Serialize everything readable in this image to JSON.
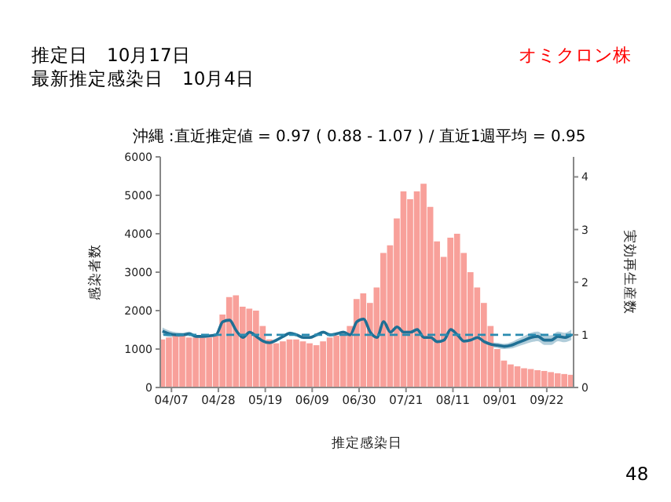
{
  "chart_data": {
    "type": "bar",
    "title": "沖縄 :直近推定値 = 0.97 ( 0.88 - 1.07 ) / 直近1週平均 = 0.95",
    "xlabel": "推定感染日",
    "ylabel": "感染者数",
    "y2label": "実効再生産数",
    "annotations": [
      "推定日　10月17日",
      "最新推定感染日　10月4日",
      "オミクロン株",
      "48"
    ],
    "x": [
      "--04-03",
      "--04-06",
      "--04-09",
      "--04-12",
      "--04-15",
      "--04-18",
      "--04-21",
      "--04-24",
      "--04-27",
      "--04-30",
      "--05-03",
      "--05-06",
      "--05-09",
      "--05-12",
      "--05-15",
      "--05-18",
      "--05-21",
      "--05-24",
      "--05-27",
      "--05-30",
      "--06-02",
      "--06-05",
      "--06-08",
      "--06-11",
      "--06-14",
      "--06-17",
      "--06-20",
      "--06-23",
      "--06-26",
      "--06-29",
      "--07-02",
      "--07-05",
      "--07-08",
      "--07-11",
      "--07-14",
      "--07-17",
      "--07-20",
      "--07-23",
      "--07-26",
      "--07-29",
      "--08-01",
      "--08-04",
      "--08-07",
      "--08-10",
      "--08-13",
      "--08-16",
      "--08-19",
      "--08-22",
      "--08-25",
      "--08-28",
      "--08-31",
      "--09-03",
      "--09-06",
      "--09-09",
      "--09-12",
      "--09-15",
      "--09-18",
      "--09-21",
      "--09-24",
      "--09-27",
      "--09-30",
      "--10-03"
    ],
    "series": [
      {
        "color": "#f8a09a",
        "values": [
          1250,
          1300,
          1350,
          1350,
          1300,
          1300,
          1300,
          1300,
          1350,
          1900,
          2350,
          2400,
          2100,
          2050,
          2000,
          1600,
          1250,
          1150,
          1200,
          1250,
          1250,
          1200,
          1150,
          1100,
          1200,
          1300,
          1350,
          1400,
          1600,
          2300,
          2450,
          2200,
          2600,
          3500,
          3700,
          4400,
          5100,
          4900,
          5100,
          5300,
          4700,
          3800,
          3400,
          3900,
          4000,
          3500,
          3000,
          2600,
          2200,
          1600,
          1000,
          700,
          600,
          550,
          500,
          480,
          450,
          430,
          400,
          370,
          350,
          330
        ]
      },
      {
        "type": "line",
        "axis": "y2",
        "color": "#1f6f94",
        "values": [
          1.07,
          1.02,
          1.0,
          1.0,
          1.02,
          0.97,
          0.97,
          0.98,
          1.0,
          1.25,
          1.28,
          1.08,
          0.95,
          1.05,
          0.97,
          0.88,
          0.85,
          0.9,
          0.97,
          1.03,
          1.0,
          0.95,
          0.95,
          1.0,
          1.05,
          1.0,
          1.02,
          1.05,
          1.0,
          1.25,
          1.3,
          1.05,
          0.95,
          1.25,
          1.05,
          1.15,
          1.05,
          1.05,
          1.1,
          0.95,
          0.95,
          0.87,
          0.9,
          1.1,
          1.0,
          0.88,
          0.9,
          0.95,
          0.87,
          0.82,
          0.8,
          0.78,
          0.8,
          0.85,
          0.9,
          0.95,
          0.97,
          0.9,
          0.9,
          0.97,
          0.95,
          1.0
        ],
        "lower": [
          1.0,
          0.96,
          0.95,
          0.96,
          0.98,
          0.94,
          0.94,
          0.95,
          0.97,
          1.22,
          1.25,
          1.05,
          0.92,
          1.02,
          0.94,
          0.85,
          0.82,
          0.87,
          0.94,
          1.0,
          0.97,
          0.92,
          0.92,
          0.97,
          1.02,
          0.97,
          0.99,
          1.02,
          0.97,
          1.22,
          1.27,
          1.02,
          0.92,
          1.22,
          1.02,
          1.12,
          1.02,
          1.02,
          1.07,
          0.92,
          0.92,
          0.84,
          0.87,
          1.07,
          0.97,
          0.85,
          0.87,
          0.92,
          0.84,
          0.78,
          0.75,
          0.73,
          0.74,
          0.78,
          0.82,
          0.86,
          0.88,
          0.81,
          0.81,
          0.88,
          0.86,
          0.9
        ],
        "upper": [
          1.14,
          1.08,
          1.05,
          1.04,
          1.06,
          1.0,
          1.0,
          1.01,
          1.03,
          1.28,
          1.31,
          1.11,
          0.98,
          1.08,
          1.0,
          0.91,
          0.88,
          0.93,
          1.0,
          1.06,
          1.03,
          0.98,
          0.98,
          1.03,
          1.08,
          1.03,
          1.05,
          1.08,
          1.03,
          1.28,
          1.33,
          1.08,
          0.98,
          1.28,
          1.08,
          1.18,
          1.08,
          1.08,
          1.13,
          0.98,
          0.98,
          0.9,
          0.93,
          1.13,
          1.03,
          0.91,
          0.93,
          0.98,
          0.9,
          0.86,
          0.85,
          0.83,
          0.86,
          0.92,
          0.98,
          1.04,
          1.06,
          0.99,
          0.99,
          1.06,
          1.04,
          1.1
        ]
      }
    ],
    "xlim": [
      "--04-02",
      "--10-04"
    ],
    "xticks": [
      {
        "value": "--04-07",
        "label": "04/07"
      },
      {
        "value": "--04-28",
        "label": "04/28"
      },
      {
        "value": "--05-19",
        "label": "05/19"
      },
      {
        "value": "--06-09",
        "label": "06/09"
      },
      {
        "value": "--06-30",
        "label": "06/30"
      },
      {
        "value": "--07-21",
        "label": "07/21"
      },
      {
        "value": "--08-11",
        "label": "08/11"
      },
      {
        "value": "--09-01",
        "label": "09/01"
      },
      {
        "value": "--09-22",
        "label": "09/22"
      }
    ],
    "ylim": [
      0,
      6000
    ],
    "yticks": [
      0,
      1000,
      2000,
      3000,
      4000,
      5000,
      6000
    ],
    "y2lim": [
      0,
      4.38
    ],
    "y2ticks": [
      0,
      1,
      2,
      3,
      4
    ],
    "ref_lines": [
      {
        "axis": "y2",
        "value": 1,
        "color": "#2a8bb0",
        "line_style": "dashed"
      }
    ],
    "grid": false,
    "legend": false
  }
}
